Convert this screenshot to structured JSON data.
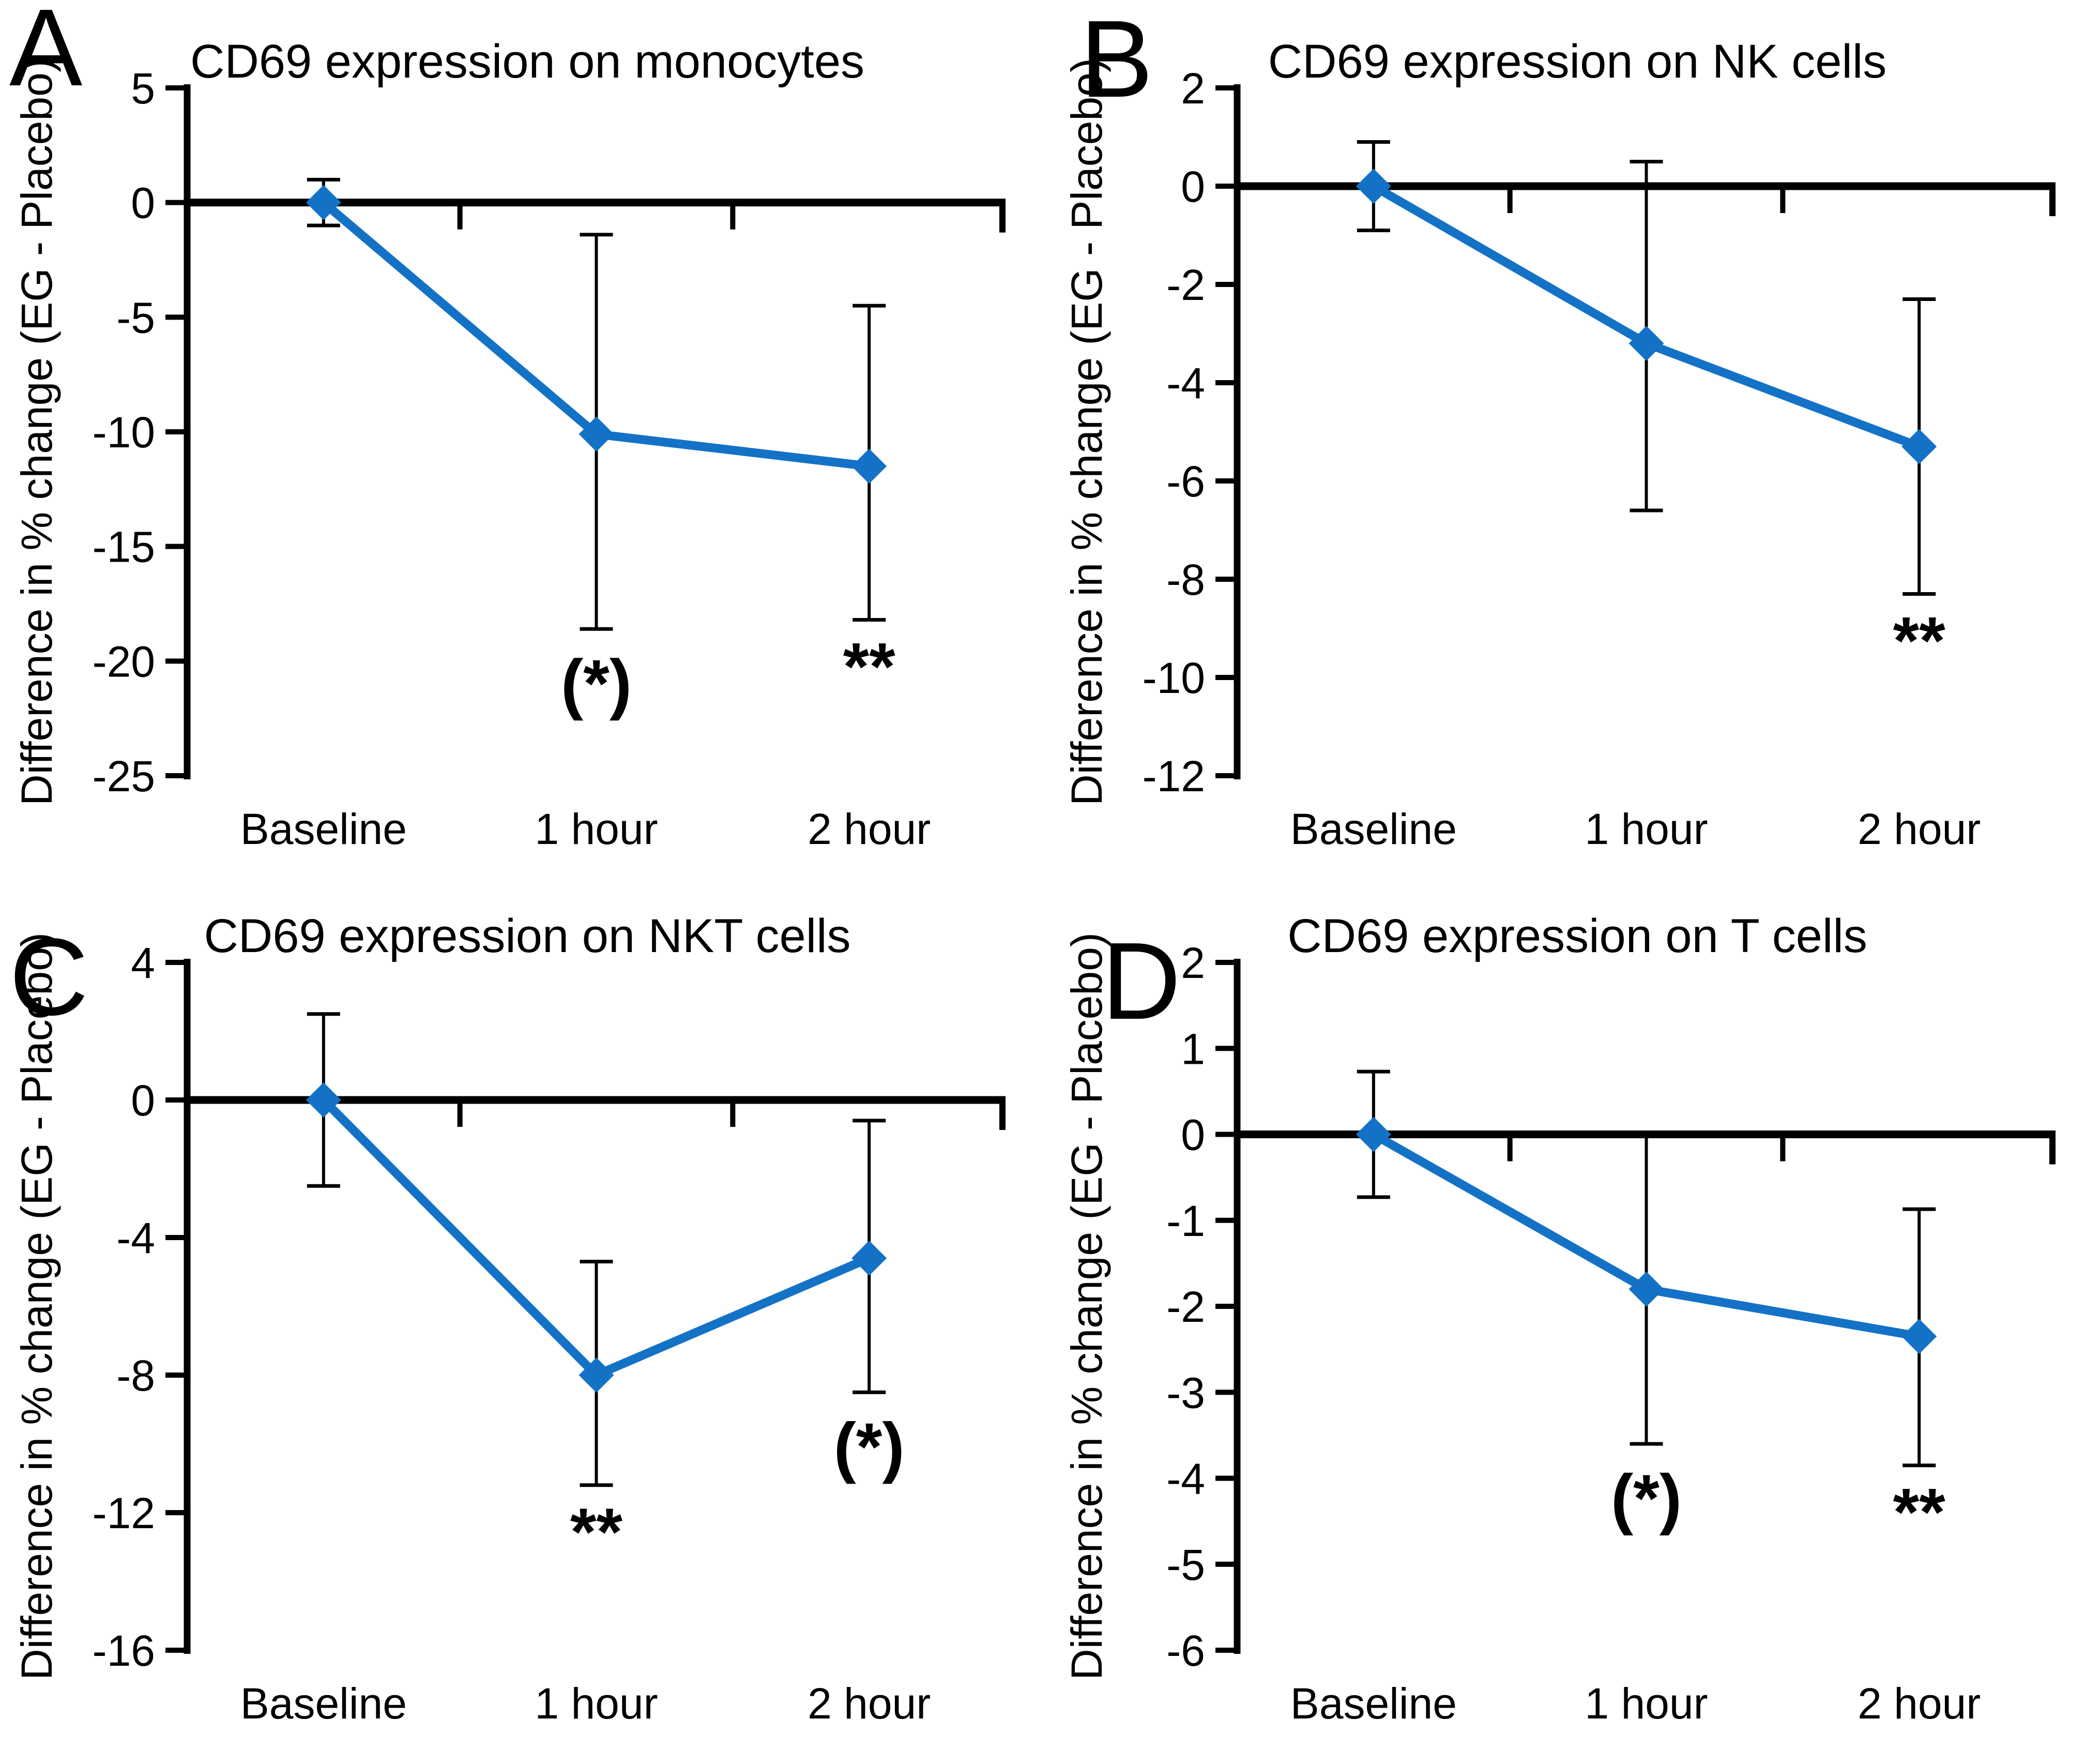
{
  "figure": {
    "background": "#ffffff",
    "axis_color": "#000000",
    "line_color": "#1372C6",
    "marker": "diamond"
  },
  "chart_data": [
    {
      "type": "line",
      "panel_label": "A",
      "title": "CD69 expression on monocytes",
      "xlabel": "",
      "ylabel": "Difference in % change (EG - Placebo)",
      "categories": [
        "Baseline",
        "1 hour",
        "2 hour"
      ],
      "series": [
        {
          "values": [
            0,
            -10.1,
            -11.5
          ]
        }
      ],
      "error_bars": {
        "upper": [
          1.0,
          -1.4,
          -4.5
        ],
        "lower": [
          -1.0,
          -18.6,
          -18.2
        ]
      },
      "annotations": [
        {
          "category": "1 hour",
          "text": "(*)"
        },
        {
          "category": "2 hour",
          "text": "**"
        }
      ],
      "ylim": [
        -25,
        5
      ],
      "yticks": [
        5,
        0,
        -5,
        -10,
        -15,
        -20,
        -25
      ],
      "grid": false,
      "legend": "none"
    },
    {
      "type": "line",
      "panel_label": "B",
      "title": "CD69 expression on NK cells",
      "xlabel": "",
      "ylabel": "Difference in % change (EG - Placebo)",
      "categories": [
        "Baseline",
        "1 hour",
        "2 hour"
      ],
      "series": [
        {
          "values": [
            0,
            -3.2,
            -5.3
          ]
        }
      ],
      "error_bars": {
        "upper": [
          0.9,
          0.5,
          -2.3
        ],
        "lower": [
          -0.9,
          -6.6,
          -8.3
        ]
      },
      "annotations": [
        {
          "category": "2 hour",
          "text": "**"
        }
      ],
      "ylim": [
        -12,
        2
      ],
      "yticks": [
        2,
        0,
        -2,
        -4,
        -6,
        -8,
        -10,
        -12
      ],
      "grid": false,
      "legend": "none"
    },
    {
      "type": "line",
      "panel_label": "C",
      "title": "CD69 expression on NKT cells",
      "xlabel": "",
      "ylabel": "Difference in % change (EG - Placebo)",
      "categories": [
        "Baseline",
        "1 hour",
        "2 hour"
      ],
      "series": [
        {
          "values": [
            0,
            -8.0,
            -4.6
          ]
        }
      ],
      "error_bars": {
        "upper": [
          2.5,
          -4.7,
          -0.6
        ],
        "lower": [
          -2.5,
          -11.2,
          -8.5
        ]
      },
      "annotations": [
        {
          "category": "1 hour",
          "text": "**"
        },
        {
          "category": "2 hour",
          "text": "(*)"
        }
      ],
      "ylim": [
        -16,
        4
      ],
      "yticks": [
        4,
        0,
        -4,
        -8,
        -12,
        -16
      ],
      "grid": false,
      "legend": "none"
    },
    {
      "type": "line",
      "panel_label": "D",
      "title": "CD69 expression on T cells",
      "xlabel": "",
      "ylabel": "Difference in % change (EG - Placebo)",
      "categories": [
        "Baseline",
        "1 hour",
        "2 hour"
      ],
      "series": [
        {
          "values": [
            0,
            -1.8,
            -2.35
          ]
        }
      ],
      "error_bars": {
        "upper": [
          0.73,
          0.0,
          -0.87
        ],
        "lower": [
          -0.73,
          -3.6,
          -3.85
        ]
      },
      "annotations": [
        {
          "category": "1 hour",
          "text": "(*)"
        },
        {
          "category": "2 hour",
          "text": "**"
        }
      ],
      "ylim": [
        -6,
        2
      ],
      "yticks": [
        2,
        1,
        0,
        -1,
        -2,
        -3,
        -4,
        -5,
        -6
      ],
      "grid": false,
      "legend": "none"
    }
  ]
}
